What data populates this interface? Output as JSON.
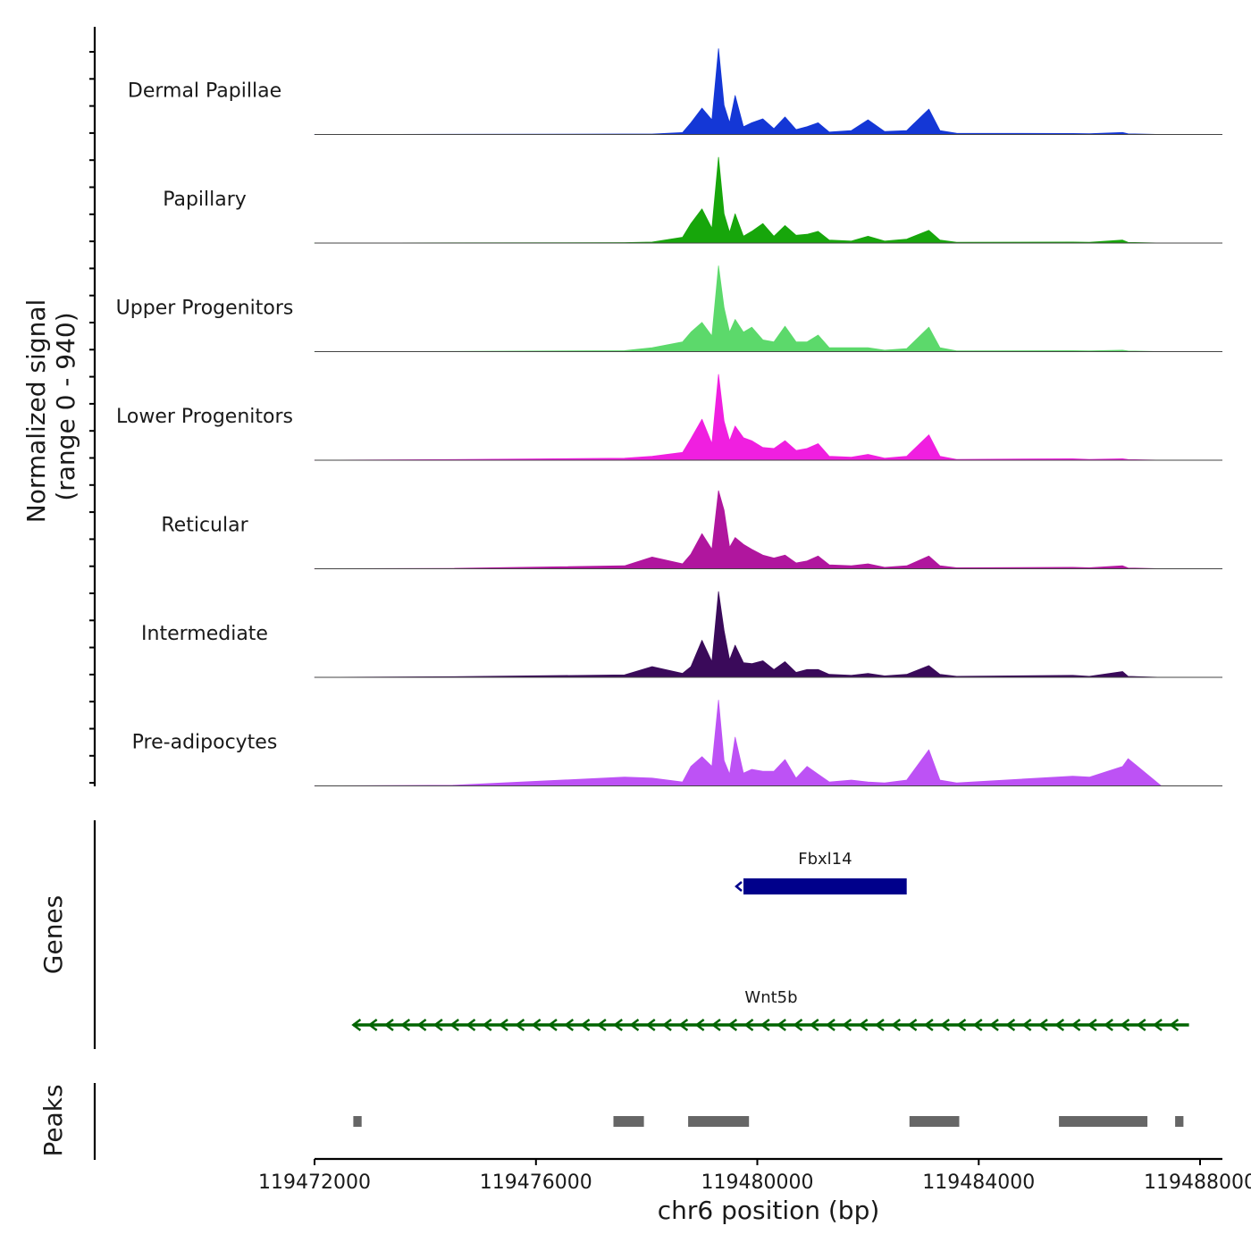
{
  "chart_data": {
    "type": "area",
    "title": "",
    "ylabel_line1": "Normalized signal",
    "ylabel_line2": "(range 0 - 940)",
    "xlabel": "chr6 position (bp)",
    "xlim": [
      119472000,
      119488500
    ],
    "xticks": [
      119472000,
      119476000,
      119480000,
      119484000,
      119488000
    ],
    "xtick_labels": [
      "119472000",
      "119476000",
      "119480000",
      "119484000",
      "119488000"
    ],
    "signal_max": 940,
    "signal_x": [
      119472000,
      119474500,
      119477600,
      119478100,
      119478650,
      119478800,
      119479000,
      119479180,
      119479300,
      119479400,
      119479500,
      119479600,
      119479750,
      119479900,
      119480100,
      119480300,
      119480500,
      119480700,
      119480900,
      119481100,
      119481300,
      119481700,
      119482000,
      119482300,
      119482700,
      119483100,
      119483300,
      119483600,
      119485700,
      119486000,
      119486600,
      119486700,
      119487300
    ],
    "series": [
      {
        "name": "Dermal Papillae",
        "color": "#1437d6",
        "values": [
          0,
          2,
          5,
          5,
          20,
          120,
          270,
          150,
          880,
          300,
          120,
          400,
          80,
          120,
          160,
          60,
          180,
          50,
          80,
          120,
          25,
          40,
          150,
          30,
          40,
          260,
          40,
          12,
          10,
          8,
          20,
          6,
          0
        ]
      },
      {
        "name": "Papillary",
        "color": "#17a60b",
        "values": [
          0,
          2,
          5,
          10,
          60,
          200,
          350,
          150,
          880,
          300,
          110,
          300,
          70,
          120,
          200,
          70,
          180,
          80,
          90,
          120,
          30,
          20,
          70,
          20,
          40,
          130,
          30,
          8,
          10,
          8,
          30,
          6,
          0
        ]
      },
      {
        "name": "Upper Progenitors",
        "color": "#5cd96b",
        "values": [
          0,
          2,
          10,
          40,
          100,
          200,
          300,
          160,
          880,
          450,
          200,
          330,
          200,
          250,
          120,
          100,
          260,
          100,
          100,
          170,
          40,
          40,
          40,
          15,
          30,
          250,
          40,
          8,
          10,
          8,
          15,
          6,
          0
        ]
      },
      {
        "name": "Lower Progenitors",
        "color": "#f01fe0",
        "values": [
          0,
          6,
          20,
          40,
          80,
          220,
          420,
          170,
          880,
          400,
          200,
          350,
          230,
          200,
          130,
          120,
          200,
          100,
          120,
          170,
          40,
          30,
          60,
          20,
          40,
          260,
          40,
          8,
          15,
          8,
          15,
          6,
          0
        ]
      },
      {
        "name": "Reticular",
        "color": "#b0169e",
        "values": [
          0,
          4,
          30,
          120,
          50,
          150,
          360,
          200,
          800,
          600,
          220,
          320,
          250,
          200,
          140,
          110,
          140,
          60,
          80,
          130,
          40,
          30,
          50,
          15,
          30,
          130,
          30,
          10,
          15,
          10,
          30,
          8,
          0
        ]
      },
      {
        "name": "Intermediate",
        "color": "#3a0a5a",
        "values": [
          0,
          6,
          25,
          110,
          40,
          110,
          380,
          160,
          880,
          480,
          180,
          330,
          150,
          140,
          170,
          80,
          160,
          50,
          80,
          80,
          30,
          20,
          40,
          15,
          30,
          120,
          30,
          10,
          20,
          10,
          60,
          10,
          0
        ]
      },
      {
        "name": "Pre-adipocytes",
        "color": "#bd52f5",
        "values": [
          0,
          6,
          90,
          80,
          40,
          200,
          300,
          200,
          880,
          260,
          120,
          500,
          130,
          170,
          150,
          150,
          270,
          80,
          200,
          120,
          40,
          60,
          40,
          30,
          60,
          370,
          60,
          30,
          100,
          90,
          200,
          280,
          0
        ]
      }
    ],
    "genes_label": "Genes",
    "genes": [
      {
        "name": "Fbxl14",
        "start": 119479750,
        "end": 119482700,
        "strand": "-",
        "color": "#00008b",
        "style": "thick"
      },
      {
        "name": "Wnt5b",
        "start": 119472700,
        "end": 119487800,
        "strand": "-",
        "color": "#006400",
        "style": "thin"
      }
    ],
    "peaks_label": "Peaks",
    "peaks_color": "#666666",
    "peaks": [
      [
        119472700,
        119472850
      ],
      [
        119477400,
        119477950
      ],
      [
        119478750,
        119479850
      ],
      [
        119482750,
        119483650
      ],
      [
        119485450,
        119486200
      ],
      [
        119486200,
        119487050
      ],
      [
        119487550,
        119487700
      ]
    ]
  }
}
